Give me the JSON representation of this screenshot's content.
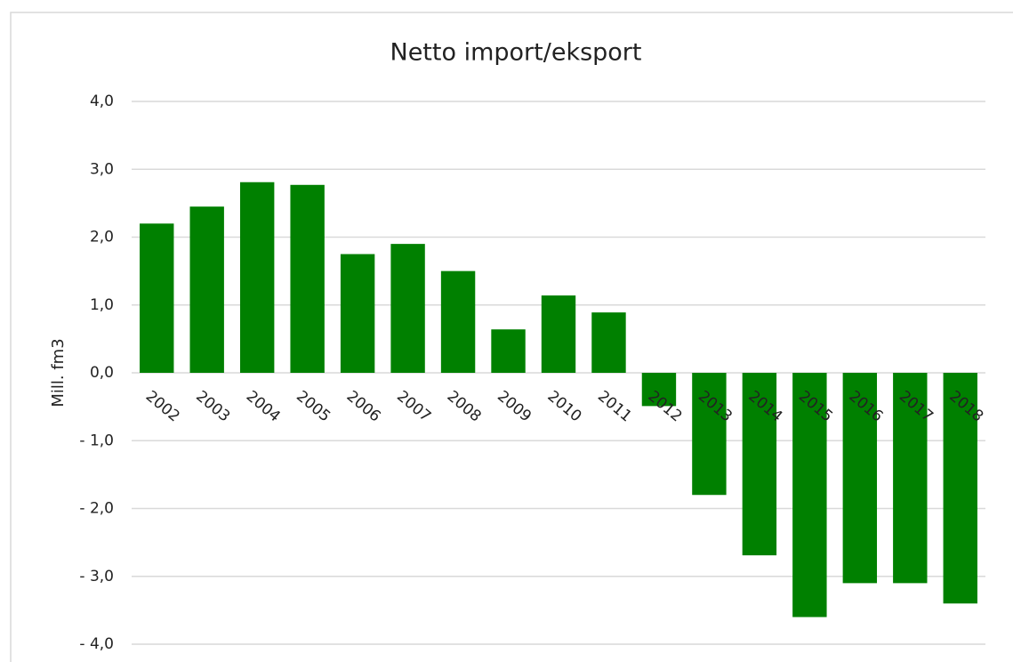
{
  "chart_data": {
    "type": "bar",
    "title": "Netto import/eksport",
    "y_label": "Mill. fm3",
    "categories": [
      "2002",
      "2003",
      "2004",
      "2005",
      "2006",
      "2007",
      "2008",
      "2009",
      "2010",
      "2011",
      "2012",
      "2013",
      "2014",
      "2015",
      "2016",
      "2017",
      "2018"
    ],
    "values": [
      2.2,
      2.45,
      2.81,
      2.77,
      1.75,
      1.9,
      1.5,
      0.64,
      1.14,
      0.89,
      -0.49,
      -1.8,
      -2.69,
      -3.6,
      -3.1,
      -3.1,
      -3.4
    ],
    "color": "#008000",
    "ylim": [
      -4,
      4
    ],
    "yticks": [
      {
        "value": -4,
        "label": "- 4,0"
      },
      {
        "value": -3,
        "label": "- 3,0"
      },
      {
        "value": -2,
        "label": "- 2,0"
      },
      {
        "value": -1,
        "label": "- 1,0"
      },
      {
        "value": 0,
        "label": "0,0"
      },
      {
        "value": 1,
        "label": "1,0"
      },
      {
        "value": 2,
        "label": "2,0"
      },
      {
        "value": 3,
        "label": "3,0"
      },
      {
        "value": 4,
        "label": "4,0"
      }
    ],
    "grid": true
  }
}
